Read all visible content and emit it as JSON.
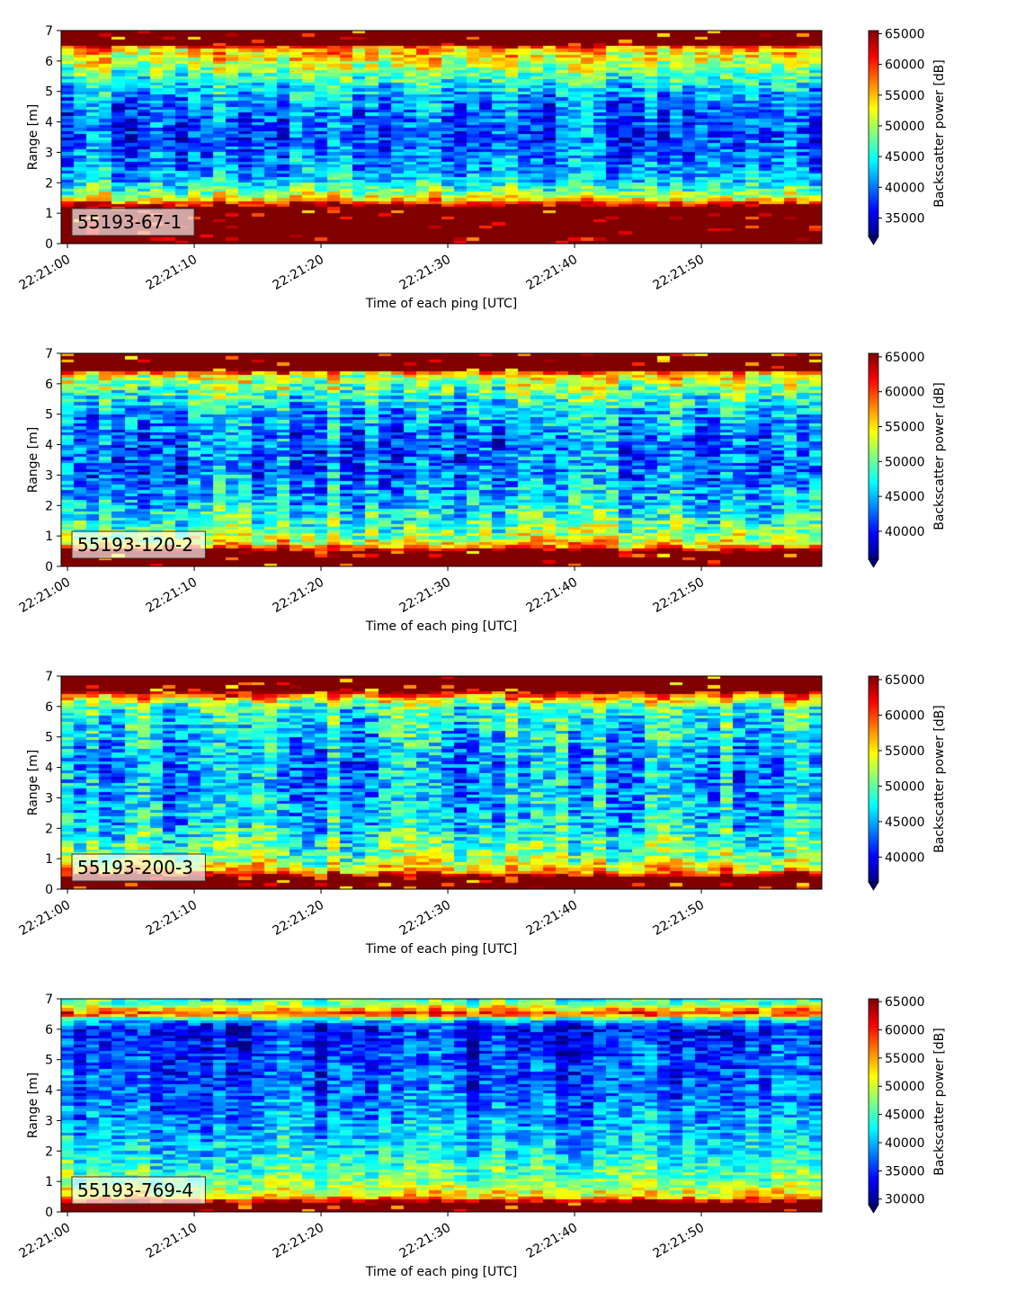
{
  "chart_data": [
    {
      "type": "heatmap",
      "panel_label": "55193-67-1",
      "xlabel": "Time of each ping [UTC]",
      "ylabel": "Range [m]",
      "xticks": [
        "22:21:00",
        "22:21:10",
        "22:21:20",
        "22:21:30",
        "22:21:40",
        "22:21:50"
      ],
      "xlim_seconds": [
        -0.5,
        59.5
      ],
      "ylim": [
        0,
        7
      ],
      "yticks": [
        0,
        1,
        2,
        3,
        4,
        5,
        6,
        7
      ],
      "colorbar": {
        "label": "Backscatter power [dB]",
        "min": 32000,
        "max": 65500,
        "ticks": [
          35000,
          40000,
          45000,
          50000,
          55000,
          60000,
          65000
        ],
        "tick_labels": [
          "35000",
          "40000",
          "45000",
          "50000",
          "55000",
          "60000",
          "65000"
        ],
        "extend": "min"
      },
      "profile": [
        [
          0,
          65500
        ],
        [
          0.2,
          65500
        ],
        [
          1.2,
          65500
        ],
        [
          1.5,
          52000
        ],
        [
          2.0,
          44000
        ],
        [
          2.5,
          41000
        ],
        [
          3.5,
          38500
        ],
        [
          4.5,
          40000
        ],
        [
          5.2,
          44000
        ],
        [
          5.8,
          50000
        ],
        [
          6.4,
          55000
        ],
        [
          6.55,
          65500
        ],
        [
          7,
          65500
        ]
      ]
    },
    {
      "type": "heatmap",
      "panel_label": "55193-120-2",
      "xlabel": "Time of each ping [UTC]",
      "ylabel": "Range [m]",
      "xticks": [
        "22:21:00",
        "22:21:10",
        "22:21:20",
        "22:21:30",
        "22:21:40",
        "22:21:50"
      ],
      "xlim_seconds": [
        -0.5,
        59.5
      ],
      "ylim": [
        0,
        7
      ],
      "yticks": [
        0,
        1,
        2,
        3,
        4,
        5,
        6,
        7
      ],
      "colorbar": {
        "label": "Backscatter power [dB]",
        "min": 36000,
        "max": 65500,
        "ticks": [
          40000,
          45000,
          50000,
          55000,
          60000,
          65000
        ],
        "tick_labels": [
          "40000",
          "45000",
          "50000",
          "55000",
          "60000",
          "65000"
        ],
        "extend": "min"
      },
      "profile": [
        [
          0,
          65500
        ],
        [
          0.15,
          65500
        ],
        [
          0.5,
          65500
        ],
        [
          0.7,
          55000
        ],
        [
          1.2,
          50000
        ],
        [
          2.0,
          46000
        ],
        [
          3.0,
          43000
        ],
        [
          4.0,
          42500
        ],
        [
          5.0,
          45000
        ],
        [
          5.8,
          50000
        ],
        [
          6.3,
          54000
        ],
        [
          6.45,
          65500
        ],
        [
          7,
          65500
        ]
      ]
    },
    {
      "type": "heatmap",
      "panel_label": "55193-200-3",
      "xlabel": "Time of each ping [UTC]",
      "ylabel": "Range [m]",
      "xticks": [
        "22:21:00",
        "22:21:10",
        "22:21:20",
        "22:21:30",
        "22:21:40",
        "22:21:50"
      ],
      "xlim_seconds": [
        -0.5,
        59.5
      ],
      "ylim": [
        0,
        7
      ],
      "yticks": [
        0,
        1,
        2,
        3,
        4,
        5,
        6,
        7
      ],
      "colorbar": {
        "label": "Backscatter power [dB]",
        "min": 36500,
        "max": 65500,
        "ticks": [
          40000,
          45000,
          50000,
          55000,
          60000,
          65000
        ],
        "tick_labels": [
          "40000",
          "45000",
          "50000",
          "55000",
          "60000",
          "65000"
        ],
        "extend": "min"
      },
      "profile": [
        [
          0,
          65500
        ],
        [
          0.1,
          65500
        ],
        [
          0.4,
          65500
        ],
        [
          0.6,
          56000
        ],
        [
          1.0,
          51000
        ],
        [
          2.0,
          47000
        ],
        [
          3.0,
          45000
        ],
        [
          4.0,
          44500
        ],
        [
          5.0,
          46000
        ],
        [
          6.0,
          49000
        ],
        [
          6.35,
          58000
        ],
        [
          6.5,
          65500
        ],
        [
          7,
          65500
        ]
      ]
    },
    {
      "type": "heatmap",
      "panel_label": "55193-769-4",
      "xlabel": "Time of each ping [UTC]",
      "ylabel": "Range [m]",
      "xticks": [
        "22:21:00",
        "22:21:10",
        "22:21:20",
        "22:21:30",
        "22:21:40",
        "22:21:50"
      ],
      "xlim_seconds": [
        -0.5,
        59.5
      ],
      "ylim": [
        0,
        7
      ],
      "yticks": [
        0,
        1,
        2,
        3,
        4,
        5,
        6,
        7
      ],
      "colorbar": {
        "label": "Backscatter power [dB]",
        "min": 29000,
        "max": 65500,
        "ticks": [
          30000,
          35000,
          40000,
          45000,
          50000,
          55000,
          60000,
          65000
        ],
        "tick_labels": [
          "30000",
          "35000",
          "40000",
          "45000",
          "50000",
          "55000",
          "60000",
          "65000"
        ],
        "extend": "min"
      },
      "profile": [
        [
          0,
          65500
        ],
        [
          0.1,
          65500
        ],
        [
          0.3,
          65500
        ],
        [
          0.5,
          52000
        ],
        [
          1.0,
          47000
        ],
        [
          2.0,
          42000
        ],
        [
          3.0,
          39000
        ],
        [
          4.0,
          37000
        ],
        [
          5.0,
          36000
        ],
        [
          6.0,
          34000
        ],
        [
          6.3,
          40000
        ],
        [
          6.5,
          60000
        ],
        [
          6.7,
          52000
        ],
        [
          6.85,
          46000
        ],
        [
          7,
          44000
        ]
      ]
    }
  ]
}
